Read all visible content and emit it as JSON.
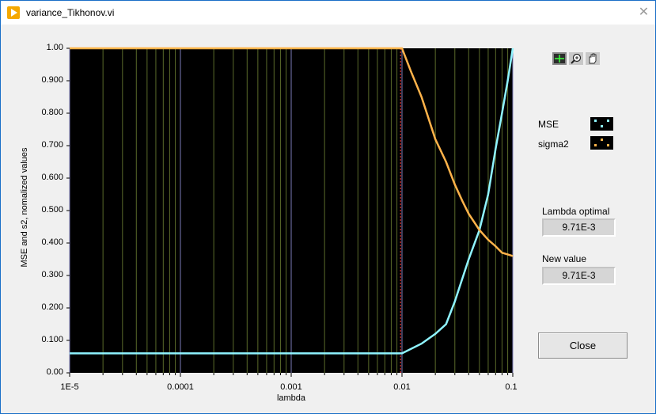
{
  "window": {
    "title": "variance_Tikhonov.vi"
  },
  "graph": {
    "y_axis_label": "MSE and s2, nomalized values",
    "x_axis_label": "lambda",
    "y_tick_labels": [
      "1.00",
      "0.900",
      "0.800",
      "0.700",
      "0.600",
      "0.500",
      "0.400",
      "0.300",
      "0.200",
      "0.100",
      "0.00"
    ],
    "x_tick_labels": [
      "1E-5",
      "0.0001",
      "0.001",
      "0.01",
      "0.1"
    ],
    "colors": {
      "background": "#000000",
      "mse": "#8ff4ff",
      "sigma2": "#ffb34a",
      "cursor": "#e03030",
      "grid": "#5a6a2a"
    }
  },
  "chart_data": {
    "type": "line",
    "x_scale": "log",
    "xlim": [
      1e-05,
      0.1
    ],
    "ylim": [
      0,
      1
    ],
    "xlabel": "lambda",
    "ylabel": "MSE and s2, nomalized values",
    "grid": true,
    "series": [
      {
        "name": "MSE",
        "x": [
          1e-05,
          0.0001,
          0.001,
          0.0095,
          0.01,
          0.015,
          0.02,
          0.025,
          0.03,
          0.035,
          0.04,
          0.05,
          0.06,
          0.07,
          0.08,
          0.09,
          0.1
        ],
        "y": [
          0.06,
          0.06,
          0.06,
          0.06,
          0.06,
          0.09,
          0.12,
          0.15,
          0.22,
          0.29,
          0.35,
          0.44,
          0.55,
          0.69,
          0.8,
          0.9,
          1.0
        ]
      },
      {
        "name": "sigma2",
        "x": [
          1e-05,
          0.0001,
          0.001,
          0.0095,
          0.01,
          0.012,
          0.015,
          0.02,
          0.025,
          0.03,
          0.035,
          0.04,
          0.05,
          0.06,
          0.07,
          0.08,
          0.09,
          0.1
        ],
        "y": [
          1.0,
          1.0,
          1.0,
          1.0,
          1.0,
          0.93,
          0.85,
          0.72,
          0.65,
          0.58,
          0.53,
          0.49,
          0.44,
          0.41,
          0.39,
          0.37,
          0.365,
          0.36
        ]
      }
    ],
    "cursor_x": 0.00971
  },
  "legend": {
    "items": [
      {
        "label": "MSE",
        "color": "#8ff4ff"
      },
      {
        "label": "sigma2",
        "color": "#ffb34a"
      }
    ]
  },
  "tools": [
    "cursor-move-tool-icon",
    "zoom-tool-icon",
    "pan-hand-tool-icon"
  ],
  "fields": {
    "lambda_optimal_label": "Lambda optimal",
    "lambda_optimal_value": "9.71E-3",
    "new_value_label": "New value",
    "new_value_value": "9.71E-3"
  },
  "buttons": {
    "close_label": "Close"
  }
}
